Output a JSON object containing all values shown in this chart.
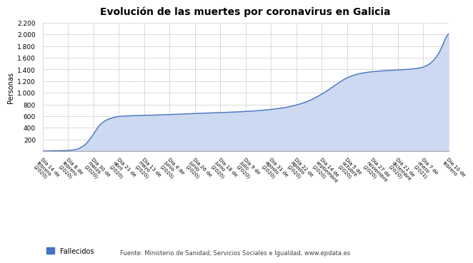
{
  "title": "Evolución de las muertes por coronavirus en Galicia",
  "ylabel": "Personas",
  "line_color": "#4472c4",
  "fill_color": "#ccd9f0",
  "background_color": "#ffffff",
  "grid_color": "#cccccc",
  "ylim": [
    0,
    2200
  ],
  "yticks": [
    200,
    400,
    600,
    800,
    1000,
    1200,
    1400,
    1600,
    1800,
    2000,
    2200
  ],
  "legend_label": "Fallecidos",
  "source_text": "Fuente: Ministerio de Sanidad, Servicios Sociales e Igualdad, www.epdata.es",
  "xtick_labels": [
    "Día 14 de\nfebrero\n(2020)",
    "Día 8 de\nfebrero\n(2020)",
    "Día 30 de\nmarzo\n(2020)",
    "Día 21 de\nabril\n(2020)",
    "Día 13 de\nmayo\n(2020)",
    "Día 4 de\njunio\n(2020)",
    "Día 26 de\njunio\n(2020)",
    "Día 18 de\njunio\n(2020)",
    "Día 9 de\njulio\n(2020)",
    "Día 31 de\nagosto\n(2020)",
    "Día 22 de\nagosto\n(2020)",
    "Día 14 de\nseptiembre\n(2020)",
    "Día 5 de\noctubre\n(2020)",
    "Día 27 de\nnoviembre\n(2020)",
    "Día 21 de\ndiciembre\n(2020)",
    "Día 7 de\nenero\n(2021)",
    "Día 10 de\nfebrero"
  ],
  "data_values": [
    0,
    1,
    2,
    3,
    4,
    5,
    6,
    8,
    10,
    15,
    20,
    30,
    50,
    80,
    120,
    180,
    250,
    330,
    410,
    470,
    510,
    540,
    560,
    575,
    588,
    595,
    599,
    602,
    605,
    607,
    609,
    611,
    612,
    614,
    615,
    617,
    618,
    619,
    621,
    623,
    625,
    627,
    628,
    630,
    632,
    634,
    636,
    638,
    640,
    642,
    644,
    646,
    648,
    650,
    652,
    654,
    656,
    658,
    660,
    662,
    664,
    666,
    668,
    671,
    674,
    677,
    680,
    683,
    686,
    690,
    694,
    698,
    703,
    708,
    713,
    719,
    725,
    732,
    740,
    749,
    759,
    770,
    783,
    797,
    813,
    831,
    851,
    873,
    898,
    925,
    954,
    985,
    1017,
    1051,
    1087,
    1124,
    1160,
    1196,
    1228,
    1256,
    1278,
    1298,
    1314,
    1327,
    1338,
    1347,
    1354,
    1360,
    1365,
    1370,
    1374,
    1378,
    1381,
    1384,
    1387,
    1390,
    1393,
    1396,
    1399,
    1403,
    1407,
    1413,
    1420,
    1430,
    1445,
    1468,
    1500,
    1548,
    1610,
    1690,
    1800,
    1930,
    2010
  ]
}
